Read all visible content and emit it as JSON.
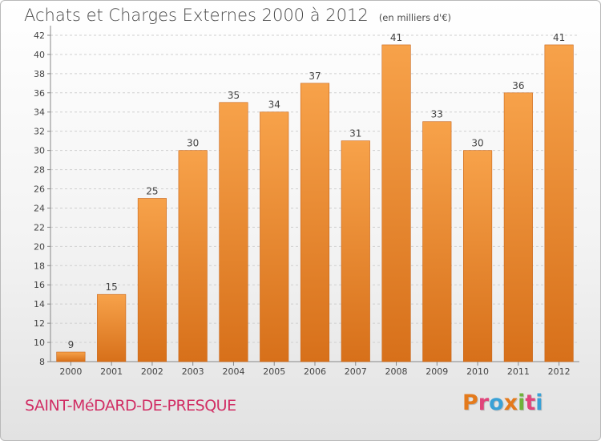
{
  "chart_data": {
    "type": "bar",
    "title": "Achats et Charges Externes 2000 à 2012",
    "subtitle": "(en milliers d'€)",
    "categories": [
      "2000",
      "2001",
      "2002",
      "2003",
      "2004",
      "2005",
      "2006",
      "2007",
      "2008",
      "2009",
      "2010",
      "2011",
      "2012"
    ],
    "values": [
      9,
      15,
      25,
      30,
      35,
      34,
      37,
      31,
      41,
      33,
      30,
      36,
      41
    ],
    "ylim": [
      8,
      43
    ],
    "yticks": [
      8,
      10,
      12,
      14,
      16,
      18,
      20,
      22,
      24,
      26,
      28,
      30,
      32,
      34,
      36,
      38,
      40,
      42
    ],
    "xlabel": "",
    "ylabel": "",
    "grid": true,
    "bar_colors": {
      "top": "#f7a24a",
      "bottom": "#d7701a",
      "edge": "#c9661a"
    }
  },
  "footer": {
    "place_name": "SAINT-MéDARD-DE-PRESQUE",
    "logo_text": "Proxiti",
    "logo_colors": [
      "#e47a1c",
      "#e0457b",
      "#3aa1d6",
      "#e47a1c",
      "#6fb33a",
      "#e0457b",
      "#3aa1d6"
    ]
  }
}
